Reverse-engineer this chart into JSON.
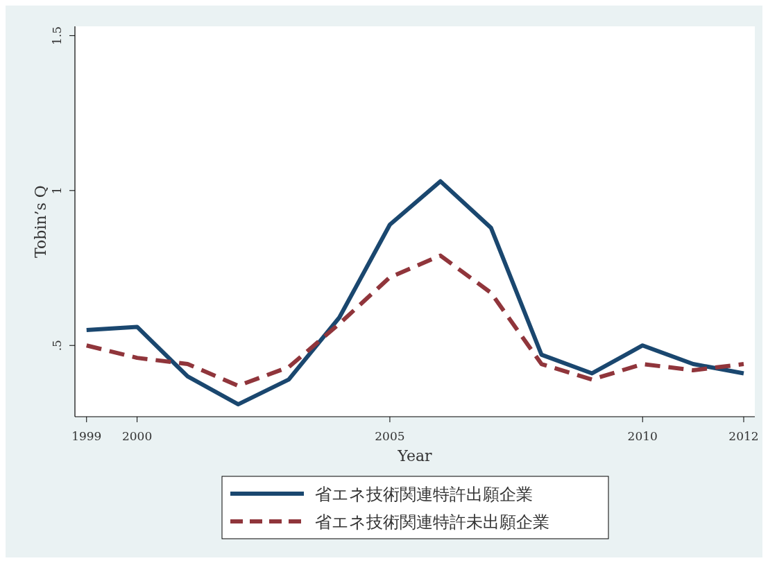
{
  "chart_data": {
    "type": "line",
    "xlabel": "Year",
    "ylabel": "Tobin’s Q",
    "x": [
      1999,
      2000,
      2001,
      2002,
      2003,
      2004,
      2005,
      2006,
      2007,
      2008,
      2009,
      2010,
      2011,
      2012
    ],
    "series": [
      {
        "name": "省エネ技術関連特許出願企業",
        "color": "#1a476f",
        "line_style": "solid",
        "values": [
          0.55,
          0.56,
          0.4,
          0.31,
          0.39,
          0.59,
          0.89,
          1.03,
          0.88,
          0.47,
          0.41,
          0.5,
          0.44,
          0.41
        ]
      },
      {
        "name": "省エネ技術関連特許未出願企業",
        "color": "#90353b",
        "line_style": "dashed",
        "values": [
          0.5,
          0.46,
          0.44,
          0.37,
          0.43,
          0.57,
          0.72,
          0.79,
          0.67,
          0.44,
          0.39,
          0.44,
          0.42,
          0.44
        ]
      }
    ],
    "xlim": [
      1998.77,
      2012.22
    ],
    "ylim": [
      0.27,
      1.53
    ],
    "xticks": [
      1999,
      2000,
      2005,
      2010,
      2012
    ],
    "yticks": [
      {
        "value": 0.5,
        "label": ".5"
      },
      1,
      1.5
    ],
    "grid": false,
    "legend": "bottom"
  }
}
